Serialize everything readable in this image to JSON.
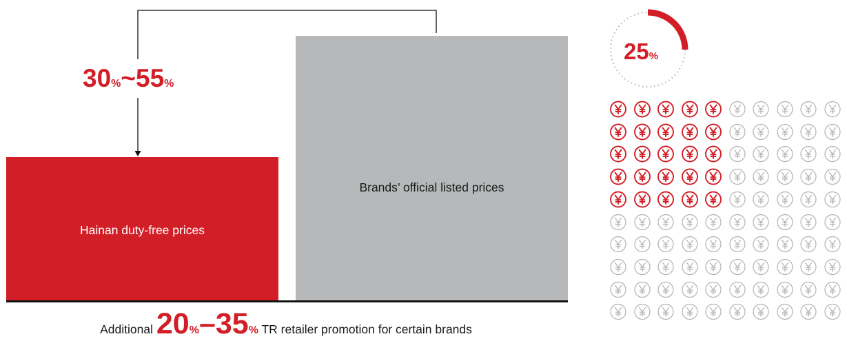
{
  "colors": {
    "accent": "#d21f27",
    "bar_gray": "#b6b8b9",
    "icon_inactive": "#b0b2b3"
  },
  "bars": {
    "duty_free": {
      "label": "Hainan duty-free prices",
      "relative_height": 0.545
    },
    "official": {
      "label": "Brands’ official listed prices",
      "relative_height": 1.0
    }
  },
  "discount_range": {
    "low": "30",
    "high": "55",
    "unit": "%",
    "separator": "~"
  },
  "promotion": {
    "prefix": "Additional",
    "low": "20",
    "high": "35",
    "unit": "%",
    "separator": "–",
    "suffix": "TR retailer promotion for certain brands"
  },
  "share": {
    "value": "25",
    "unit": "%",
    "fraction": 0.25
  },
  "icon_grid": {
    "icon": "yen-coin-icon",
    "rows": 10,
    "cols": 10,
    "highlighted_rows": 5,
    "highlighted_cols": 5
  }
}
